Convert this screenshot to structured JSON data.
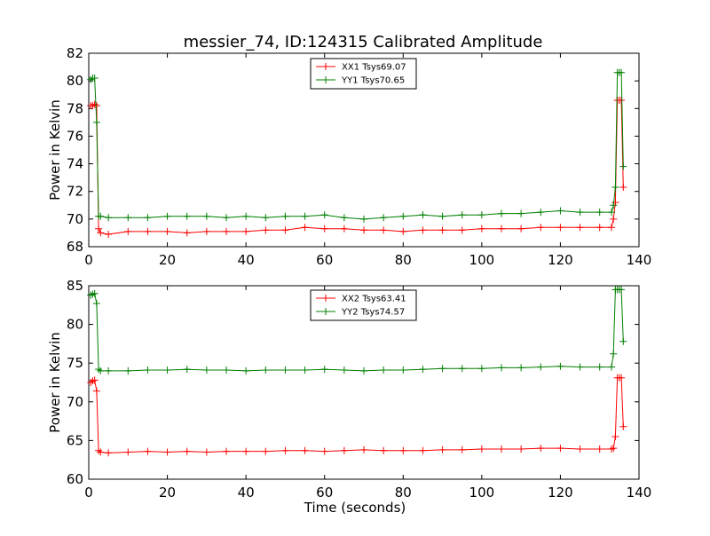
{
  "figure_title": "messier_74, ID:124315 Calibrated Amplitude",
  "colors": {
    "red": "#ff0000",
    "green": "#007f00"
  },
  "chart_data": [
    {
      "type": "line",
      "title": "messier_74, ID:124315 Calibrated Amplitude",
      "xlabel": "",
      "ylabel": "Power in Kelvin",
      "xlim": [
        0,
        140
      ],
      "ylim": [
        68,
        82
      ],
      "xticks": [
        0,
        20,
        40,
        60,
        80,
        100,
        120,
        140
      ],
      "yticks": [
        68,
        70,
        72,
        74,
        76,
        78,
        80,
        82
      ],
      "grid": false,
      "legend_position": "top-center",
      "marker": "plus",
      "series": [
        {
          "name": "XX1 Tsys69.07",
          "color": "#ff0000",
          "x": [
            0.5,
            1.0,
            1.5,
            2.0,
            2.5,
            3.0,
            5.0,
            10.0,
            15.0,
            20.0,
            25.0,
            30.0,
            35.0,
            40.0,
            45.0,
            50.0,
            55.0,
            60.0,
            65.0,
            70.0,
            75.0,
            80.0,
            85.0,
            90.0,
            95.0,
            100.0,
            105.0,
            110.0,
            115.0,
            120.0,
            125.0,
            130.0,
            133.0,
            133.5,
            134.0,
            134.5,
            135.0,
            135.5,
            136.0
          ],
          "values": [
            78.2,
            78.2,
            78.3,
            78.2,
            69.3,
            69.0,
            68.9,
            69.1,
            69.1,
            69.1,
            69.0,
            69.1,
            69.1,
            69.1,
            69.2,
            69.2,
            69.4,
            69.3,
            69.3,
            69.2,
            69.2,
            69.1,
            69.2,
            69.2,
            69.2,
            69.3,
            69.3,
            69.3,
            69.4,
            69.4,
            69.4,
            69.4,
            69.4,
            70.0,
            71.2,
            78.6,
            78.6,
            78.6,
            72.3
          ]
        },
        {
          "name": "YY1 Tsys70.65",
          "color": "#007f00",
          "x": [
            0.5,
            1.0,
            1.5,
            2.0,
            2.5,
            3.0,
            5.0,
            10.0,
            15.0,
            20.0,
            25.0,
            30.0,
            35.0,
            40.0,
            45.0,
            50.0,
            55.0,
            60.0,
            65.0,
            70.0,
            75.0,
            80.0,
            85.0,
            90.0,
            95.0,
            100.0,
            105.0,
            110.0,
            115.0,
            120.0,
            125.0,
            130.0,
            133.0,
            133.5,
            134.0,
            134.5,
            135.0,
            135.5,
            136.0
          ],
          "values": [
            80.1,
            80.2,
            80.2,
            77.0,
            70.2,
            70.2,
            70.1,
            70.1,
            70.1,
            70.2,
            70.2,
            70.2,
            70.1,
            70.2,
            70.1,
            70.2,
            70.2,
            70.3,
            70.1,
            70.0,
            70.1,
            70.2,
            70.3,
            70.2,
            70.3,
            70.3,
            70.4,
            70.4,
            70.5,
            70.6,
            70.5,
            70.5,
            70.5,
            71.0,
            72.3,
            80.6,
            80.6,
            80.6,
            73.8
          ]
        }
      ]
    },
    {
      "type": "line",
      "title": "",
      "xlabel": "Time (seconds)",
      "ylabel": "Power in Kelvin",
      "xlim": [
        0,
        140
      ],
      "ylim": [
        60,
        85
      ],
      "xticks": [
        0,
        20,
        40,
        60,
        80,
        100,
        120,
        140
      ],
      "yticks": [
        60,
        65,
        70,
        75,
        80,
        85
      ],
      "grid": false,
      "legend_position": "top-center",
      "marker": "plus",
      "series": [
        {
          "name": "XX2 Tsys63.41",
          "color": "#ff0000",
          "x": [
            0.5,
            1.0,
            1.5,
            2.0,
            2.5,
            3.0,
            5.0,
            10.0,
            15.0,
            20.0,
            25.0,
            30.0,
            35.0,
            40.0,
            45.0,
            50.0,
            55.0,
            60.0,
            65.0,
            70.0,
            75.0,
            80.0,
            85.0,
            90.0,
            95.0,
            100.0,
            105.0,
            110.0,
            115.0,
            120.0,
            125.0,
            130.0,
            133.0,
            133.5,
            134.0,
            134.5,
            135.0,
            135.5,
            136.0
          ],
          "values": [
            72.5,
            72.7,
            72.8,
            71.4,
            63.7,
            63.5,
            63.4,
            63.5,
            63.6,
            63.5,
            63.6,
            63.5,
            63.6,
            63.6,
            63.6,
            63.7,
            63.7,
            63.6,
            63.7,
            63.8,
            63.7,
            63.7,
            63.7,
            63.8,
            63.8,
            63.9,
            63.9,
            63.9,
            64.0,
            64.0,
            63.9,
            63.9,
            63.9,
            64.0,
            65.5,
            73.1,
            73.1,
            73.1,
            66.8
          ]
        },
        {
          "name": "YY2 Tsys74.57",
          "color": "#007f00",
          "x": [
            0.5,
            1.0,
            1.5,
            2.0,
            2.5,
            3.0,
            5.0,
            10.0,
            15.0,
            20.0,
            25.0,
            30.0,
            35.0,
            40.0,
            45.0,
            50.0,
            55.0,
            60.0,
            65.0,
            70.0,
            75.0,
            80.0,
            85.0,
            90.0,
            95.0,
            100.0,
            105.0,
            110.0,
            115.0,
            120.0,
            125.0,
            130.0,
            133.0,
            133.5,
            134.0,
            134.5,
            135.0,
            135.5,
            136.0
          ],
          "values": [
            83.8,
            83.9,
            84.0,
            82.7,
            74.2,
            74.0,
            74.0,
            74.0,
            74.1,
            74.1,
            74.2,
            74.1,
            74.1,
            74.0,
            74.1,
            74.1,
            74.1,
            74.2,
            74.1,
            74.0,
            74.1,
            74.1,
            74.2,
            74.3,
            74.3,
            74.3,
            74.4,
            74.4,
            74.5,
            74.6,
            74.5,
            74.5,
            74.5,
            76.2,
            84.5,
            84.5,
            84.5,
            84.5,
            77.8
          ]
        }
      ]
    }
  ]
}
